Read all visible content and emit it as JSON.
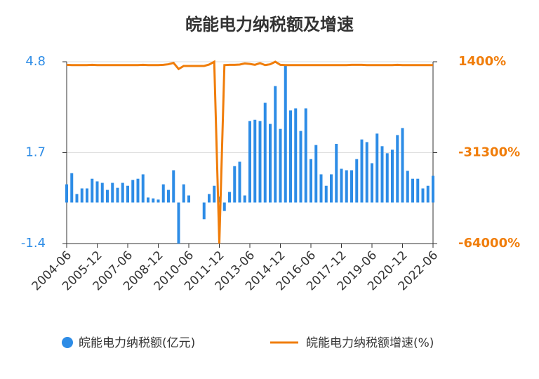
{
  "chart_data": {
    "type": "bar-line",
    "title": "皖能电力纳税额及增速",
    "categories": [
      "2004-06",
      null,
      null,
      null,
      null,
      null,
      "2005-12",
      null,
      null,
      null,
      null,
      null,
      "2007-06",
      null,
      null,
      null,
      null,
      null,
      "2008-12",
      null,
      null,
      null,
      null,
      null,
      "2010-06",
      null,
      null,
      null,
      null,
      null,
      "2011-12",
      null,
      null,
      null,
      null,
      null,
      "2013-06",
      null,
      null,
      null,
      null,
      null,
      "2014-12",
      null,
      null,
      null,
      null,
      null,
      "2016-06",
      null,
      null,
      null,
      null,
      null,
      "2017-12",
      null,
      null,
      null,
      null,
      null,
      "2019-06",
      null,
      null,
      null,
      null,
      null,
      "2020-12",
      null,
      null,
      null,
      null,
      null,
      "2022-06"
    ],
    "series": [
      {
        "name": "皖能电力纳税额(亿元)",
        "color": "#2d8ce6",
        "kind": "bar",
        "values": [
          0.62,
          1.0,
          0.29,
          0.48,
          0.48,
          0.81,
          0.72,
          0.67,
          0.43,
          0.67,
          0.5,
          0.67,
          0.57,
          0.77,
          0.81,
          0.96,
          0.17,
          0.14,
          0.1,
          0.62,
          0.43,
          1.1,
          -1.4,
          0.62,
          0.24,
          0,
          0,
          -0.57,
          0.29,
          0.57,
          0.2,
          -0.29,
          0.36,
          1.24,
          1.39,
          0.24,
          2.78,
          2.82,
          2.78,
          3.4,
          2.68,
          3.97,
          2.51,
          4.67,
          3.14,
          3.21,
          2.44,
          3.21,
          1.48,
          1.96,
          0.96,
          0.57,
          0.96,
          2.0,
          1.15,
          1.1,
          1.1,
          1.48,
          2.15,
          2.06,
          1.34,
          2.35,
          1.92,
          1.68,
          1.8,
          2.3,
          2.54,
          1.08,
          0.81,
          0.81,
          0.48,
          0.57,
          0.91
        ]
      },
      {
        "name": "皖能电力纳税额增速(%)",
        "color": "#f07d0a",
        "kind": "line",
        "axis": "y2",
        "values": [
          300,
          200,
          200,
          200,
          200,
          300,
          200,
          200,
          200,
          200,
          200,
          200,
          200,
          200,
          200,
          300,
          200,
          200,
          200,
          300,
          500,
          1000,
          -1200,
          -100,
          -100,
          -100,
          -100,
          -100,
          400,
          1400,
          -64000,
          200,
          300,
          300,
          400,
          800,
          600,
          300,
          900,
          200,
          500,
          1400,
          300,
          200,
          200,
          200,
          200,
          200,
          200,
          200,
          200,
          200,
          200,
          200,
          200,
          200,
          300,
          300,
          300,
          200,
          200,
          200,
          200,
          200,
          200,
          300,
          200,
          200,
          200,
          200,
          200,
          200,
          200
        ]
      }
    ],
    "ylim": [
      -1.4,
      4.8
    ],
    "yticks": [
      -1.4,
      1.7,
      4.8
    ],
    "y2lim": [
      -64000,
      1400
    ],
    "y2ticks": [
      {
        "value": -64000,
        "label": "-64000%"
      },
      {
        "value": -31300,
        "label": "-31300%"
      },
      {
        "value": 1400,
        "label": "1400%"
      }
    ],
    "grid": true
  }
}
